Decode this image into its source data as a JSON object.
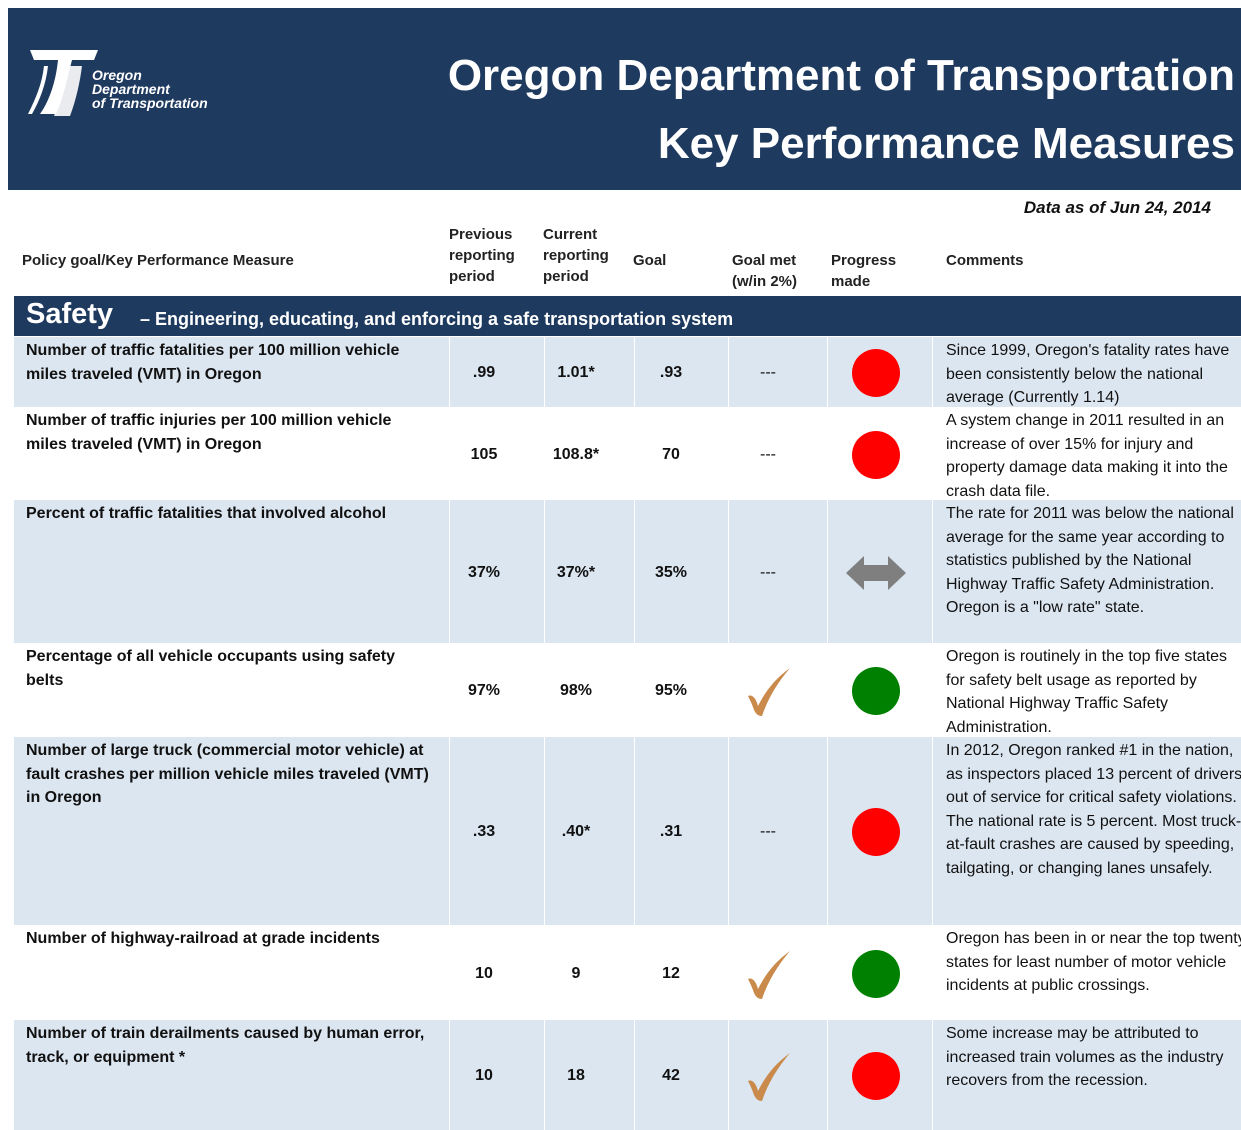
{
  "header": {
    "logo_lines": [
      "Oregon",
      "Department",
      "of Transportation"
    ],
    "title_lines": [
      "Oregon Department of Transportation",
      "Key Performance Measures"
    ]
  },
  "data_date": "Data as of Jun 24, 2014",
  "columns": [
    "Policy goal/Key Performance Measure",
    "Previous reporting period",
    "Current reporting period",
    "Goal",
    "Goal met (w/in 2%)",
    "Progress made",
    "Comments"
  ],
  "section": {
    "name": "Safety",
    "description": "– Engineering, educating, and enforcing a safe transportation system"
  },
  "rows": [
    {
      "measure": "Number of traffic fatalities per 100 million vehicle miles traveled (VMT) in Oregon",
      "previous": ".99",
      "current": "1.01*",
      "goal": ".93",
      "goal_met": "---",
      "progress": {
        "shape": "circle",
        "color": "#ff0000"
      },
      "comment": "Since 1999, Oregon's fatality rates have been consistently below the national average (Currently 1.14)"
    },
    {
      "measure": "Number of traffic injuries per 100 million vehicle miles traveled (VMT) in Oregon",
      "previous": "105",
      "current": "108.8*",
      "goal": "70",
      "goal_met": "---",
      "progress": {
        "shape": "circle",
        "color": "#ff0000"
      },
      "comment": "A system change in 2011 resulted in an increase of over 15% for injury and property damage data making it into the crash data file."
    },
    {
      "measure": "Percent of traffic fatalities that involved alcohol",
      "previous": "37%",
      "current": "37%*",
      "goal": "35%",
      "goal_met": "---",
      "progress": {
        "shape": "arrow",
        "color": "#7f7f7f"
      },
      "comment": "The rate for 2011 was below the national average for the same year according to statistics published by the National Highway Traffic Safety Administration.  Oregon is a \"low rate\" state."
    },
    {
      "measure": "Percentage of all vehicle occupants using safety belts",
      "previous": "97%",
      "current": "98%",
      "goal": "95%",
      "goal_met": null,
      "progress": {
        "shape": "circle",
        "color": "#008000"
      },
      "comment": "Oregon is routinely in the top five states for safety belt usage as reported by National Highway Traffic Safety Administration."
    },
    {
      "measure": "Number of large truck (commercial motor vehicle) at fault crashes per million vehicle miles traveled (VMT) in Oregon",
      "previous": ".33",
      "current": ".40*",
      "goal": ".31",
      "goal_met": "---",
      "progress": {
        "shape": "circle",
        "color": "#ff0000"
      },
      "comment": "In 2012, Oregon ranked #1 in the nation, as inspectors placed 13 percent of drivers out of service for critical safety violations. The national rate is 5 percent.  Most truck-at-fault crashes are caused by speeding, tailgating, or changing lanes unsafely."
    },
    {
      "measure": "Number of highway-railroad  at grade incidents",
      "previous": "10",
      "current": "9",
      "goal": "12",
      "goal_met": null,
      "progress": {
        "shape": "circle",
        "color": "#008000"
      },
      "comment": "Oregon has been in or near the top twenty states for least number of motor vehicle incidents at public crossings."
    },
    {
      "measure": "Number of train derailments caused by human error, track, or equipment *",
      "previous": "10",
      "current": "18",
      "goal": "42",
      "goal_met": null,
      "progress": {
        "shape": "circle",
        "color": "#ff0000"
      },
      "comment": "Some increase may be attributed to increased train volumes as the industry recovers from the recession."
    }
  ]
}
